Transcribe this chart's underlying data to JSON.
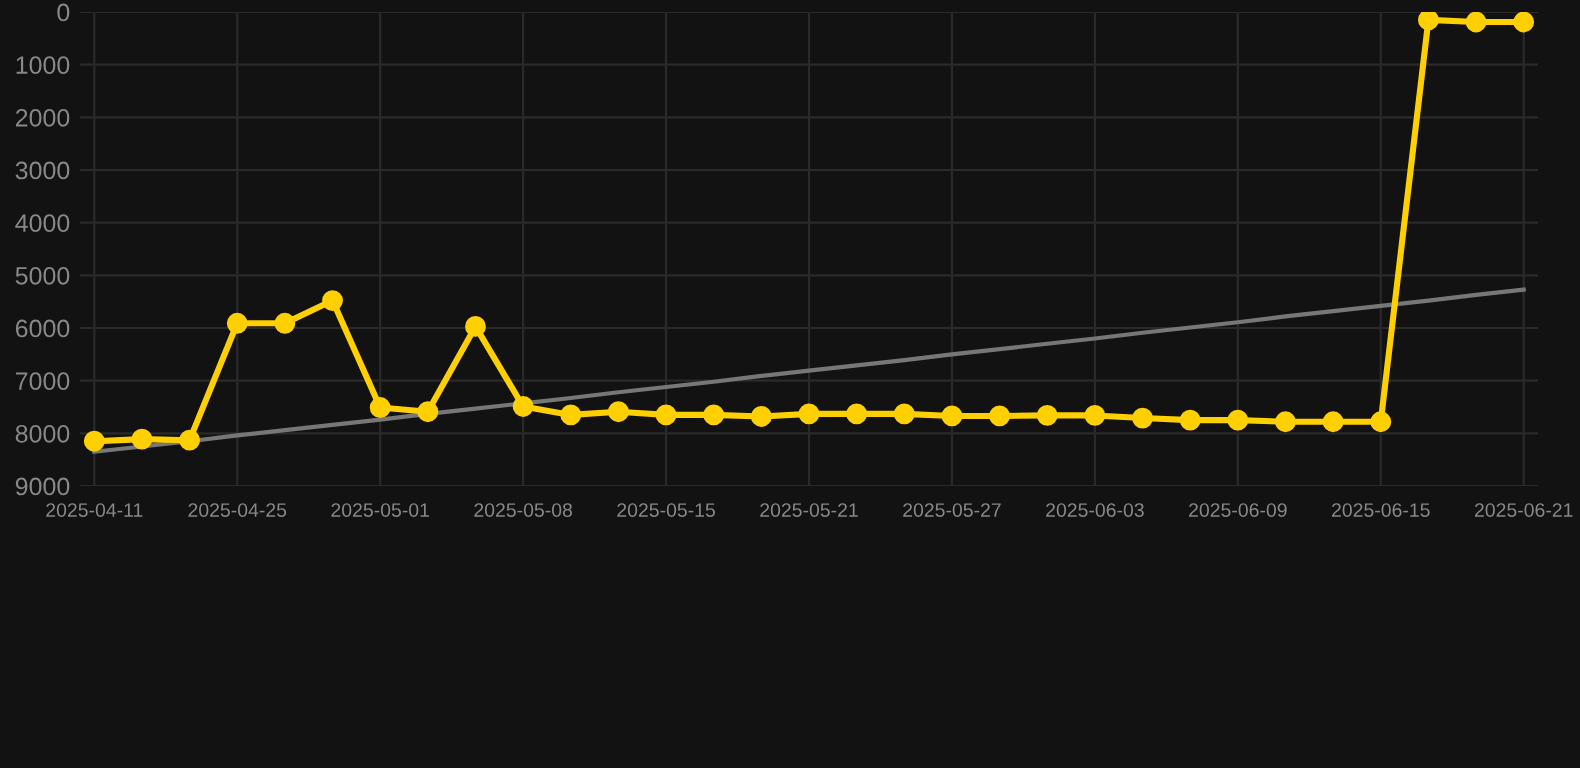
{
  "chart_data": {
    "type": "line",
    "categories": [
      "2025-04-11",
      null,
      null,
      "2025-04-25",
      null,
      null,
      "2025-05-01",
      null,
      null,
      "2025-05-08",
      null,
      null,
      "2025-05-15",
      null,
      null,
      "2025-05-21",
      null,
      null,
      "2025-05-27",
      null,
      null,
      "2025-06-03",
      null,
      null,
      "2025-06-09",
      null,
      null,
      "2025-06-15",
      null,
      null,
      "2025-06-21"
    ],
    "ylim": [
      9000,
      0
    ],
    "yticks": [
      0,
      1000,
      2000,
      3000,
      4000,
      5000,
      6000,
      7000,
      8000,
      9000
    ],
    "grid": true,
    "series": [
      {
        "color": "#777777",
        "marker": "none",
        "values": [
          8350,
          8250,
          8150,
          8040,
          7940,
          7840,
          7740,
          7630,
          7530,
          7430,
          7330,
          7220,
          7120,
          7020,
          6910,
          6810,
          6710,
          6610,
          6500,
          6400,
          6300,
          6200,
          6090,
          5990,
          5890,
          5780,
          5680,
          5580,
          5480,
          5370,
          5270
        ]
      },
      {
        "color": "#ffd000",
        "marker": "circle",
        "values": [
          8150,
          8110,
          8130,
          5910,
          5910,
          5480,
          7510,
          7590,
          5970,
          7490,
          7650,
          7590,
          7650,
          7650,
          7680,
          7630,
          7630,
          7630,
          7670,
          7670,
          7660,
          7660,
          7710,
          7750,
          7750,
          7780,
          7780,
          7780,
          150,
          190,
          190
        ]
      }
    ]
  }
}
